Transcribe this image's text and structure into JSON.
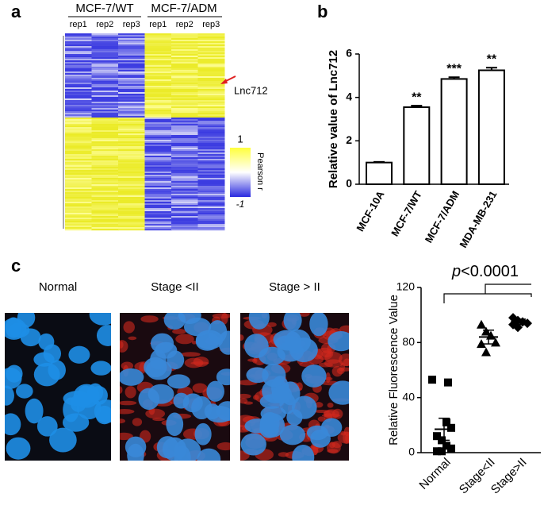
{
  "panel_a": {
    "label": "a",
    "groups": [
      "MCF-7/WT",
      "MCF-7/ADM"
    ],
    "replicates": [
      "rep1",
      "rep2",
      "rep3",
      "rep1",
      "rep2",
      "rep3"
    ],
    "arrow_label": "Lnc712",
    "colorbar": {
      "max_label": "1",
      "min_label": "-1",
      "title": "Pearson r"
    }
  },
  "panel_b": {
    "label": "b",
    "chart_data": {
      "type": "bar",
      "ylabel": "Relative value of Lnc712",
      "categories": [
        "MCF-10A",
        "MCF-7/WT",
        "MCF-7/ADM",
        "MDA-MB-231"
      ],
      "values": [
        1,
        3.55,
        4.85,
        5.25
      ],
      "errors": [
        0.03,
        0.07,
        0.08,
        0.12
      ],
      "significance": [
        null,
        "**",
        "***",
        "**"
      ],
      "ylim": [
        0,
        6
      ],
      "yticks": [
        0,
        2,
        4,
        6
      ],
      "color": "#ffffff"
    }
  },
  "panel_c": {
    "label": "c",
    "images": [
      "Normal",
      "Stage <II",
      "Stage > II"
    ],
    "chart_data": {
      "type": "dot",
      "ylabel": "Relative Fluorescence Value",
      "p_symbol": "p",
      "p_text": "<0.0001",
      "categories": [
        "Normal",
        "Stage<II",
        "Stage>II"
      ],
      "groups": [
        {
          "name": "Normal",
          "values": [
            53,
            51,
            22,
            18,
            12,
            9,
            5,
            3,
            1,
            1
          ],
          "mean": 17,
          "error": 8
        },
        {
          "name": "Stage<II",
          "values": [
            93,
            88,
            85,
            80,
            79,
            73
          ],
          "mean": 84,
          "error": 5
        },
        {
          "name": "Stage>II",
          "values": [
            98,
            96,
            95,
            94,
            93,
            91
          ],
          "mean": 95,
          "error": 2
        }
      ],
      "ylim": [
        0,
        120
      ],
      "yticks": [
        0,
        40,
        80,
        120
      ]
    }
  }
}
